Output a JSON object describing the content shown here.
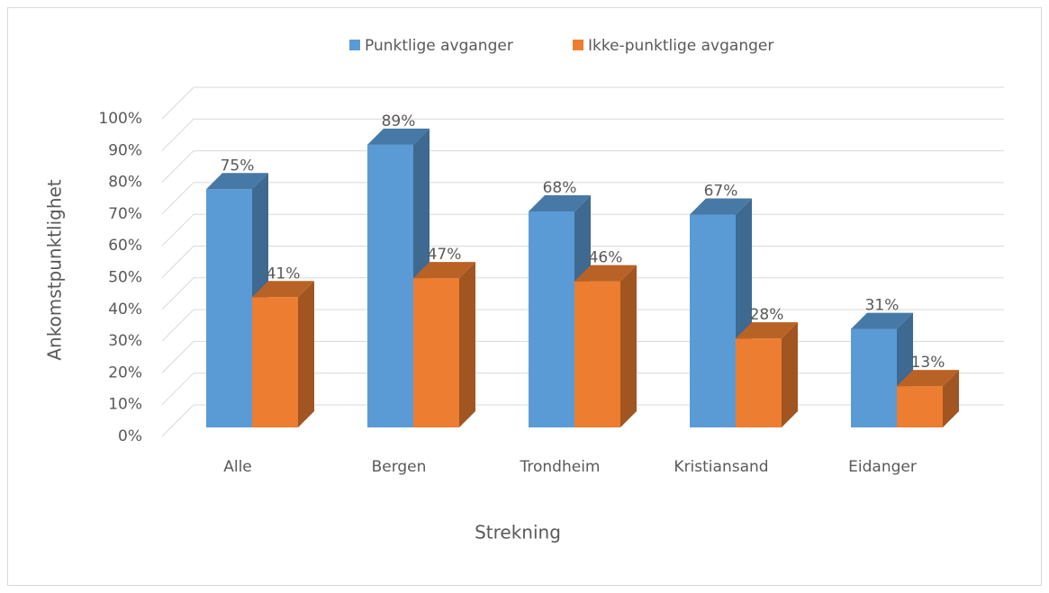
{
  "chart_data": {
    "type": "bar3d",
    "y_label": "Ankomstpunktlighet",
    "x_label": "Strekning",
    "categories": [
      "Alle",
      "Bergen",
      "Trondheim",
      "Kristiansand",
      "Eidanger"
    ],
    "series": [
      {
        "name": "Punktlige avganger",
        "color": "#5b9bd5",
        "values": [
          75,
          89,
          68,
          67,
          31
        ],
        "value_labels": [
          "75%",
          "89%",
          "68%",
          "67%",
          "31%"
        ]
      },
      {
        "name": "Ikke-punktlige avganger",
        "color": "#ed7d31",
        "values": [
          41,
          47,
          46,
          28,
          13
        ],
        "value_labels": [
          "41%",
          "47%",
          "46%",
          "28%",
          "13%"
        ]
      }
    ],
    "ylim": [
      0,
      100
    ],
    "yticks": [
      {
        "value": 0,
        "label": "0%"
      },
      {
        "value": 10,
        "label": "10%"
      },
      {
        "value": 20,
        "label": "20%"
      },
      {
        "value": 30,
        "label": "30%"
      },
      {
        "value": 40,
        "label": "40%"
      },
      {
        "value": 50,
        "label": "50%"
      },
      {
        "value": 60,
        "label": "60%"
      },
      {
        "value": 70,
        "label": "70%"
      },
      {
        "value": 80,
        "label": "80%"
      },
      {
        "value": 90,
        "label": "90%"
      },
      {
        "value": 100,
        "label": "100%"
      }
    ],
    "grid": true,
    "legend": "top"
  }
}
